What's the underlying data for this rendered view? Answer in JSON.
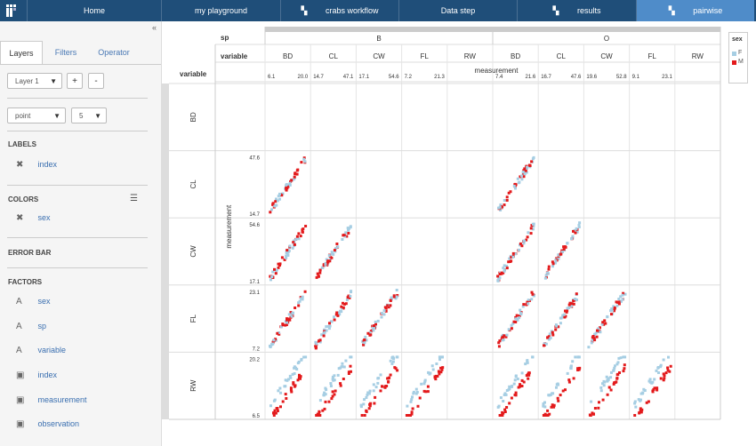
{
  "nav": {
    "tabs": [
      {
        "label": "Home",
        "icon": "",
        "active": false
      },
      {
        "label": "my playground",
        "icon": "",
        "active": false
      },
      {
        "label": "crabs workflow",
        "icon": "▚",
        "active": false
      },
      {
        "label": "Data step",
        "icon": "",
        "active": false
      },
      {
        "label": "results",
        "icon": "▚",
        "active": false
      },
      {
        "label": "pairwise",
        "icon": "▚",
        "active": true
      }
    ]
  },
  "sidebar": {
    "collapse": "«",
    "tabs": [
      "Layers",
      "Filters",
      "Operator"
    ],
    "layer_select": "Layer 1",
    "add": "+",
    "remove": "-",
    "geom_select": "point",
    "size_select": "5",
    "labels_title": "LABELS",
    "labels": [
      "index"
    ],
    "colors_title": "COLORS",
    "colors": [
      "sex"
    ],
    "errorbar_title": "ERROR BAR",
    "factors_title": "FACTORS",
    "factors": [
      {
        "label": "sex",
        "icon": "A"
      },
      {
        "label": "sp",
        "icon": "A"
      },
      {
        "label": "variable",
        "icon": "A"
      },
      {
        "label": "index",
        "icon": "▣"
      },
      {
        "label": "measurement",
        "icon": "▣"
      },
      {
        "label": "observation",
        "icon": "▣"
      }
    ]
  },
  "chart_data": {
    "type": "scatter",
    "col_factor_1": "sp",
    "col_factor_2": "variable",
    "row_factor": "variable",
    "x_title": "measurement",
    "y_title": "measurement",
    "species": [
      "B",
      "O"
    ],
    "variables": [
      "BD",
      "CL",
      "CW",
      "FL",
      "RW"
    ],
    "x_ticks": {
      "BD": [
        "6.1",
        "20.0"
      ],
      "CL": [
        "14.7",
        "47.1"
      ],
      "CW": [
        "17.1",
        "54.6"
      ],
      "FL": [
        "7.2",
        "21.3"
      ],
      "RW": [],
      "BD_O": [
        "7.4",
        "21.6"
      ],
      "CL_O": [
        "16.7",
        "47.6"
      ],
      "CW_O": [
        "19.6",
        "52.8"
      ],
      "FL_O": [
        "9.1",
        "23.1"
      ]
    },
    "y_ticks": {
      "CL": [
        "47.6",
        "14.7"
      ],
      "CW": [
        "54.6",
        "17.1"
      ],
      "FL": [
        "23.1",
        "7.2"
      ],
      "RW": [
        "20.2",
        "6.5"
      ]
    },
    "legend": {
      "title": "sex",
      "entries": [
        {
          "name": "F",
          "color": "#a6cee3"
        },
        {
          "name": "M",
          "color": "#e31a1c"
        }
      ]
    },
    "colors": {
      "F": "#a6cee3",
      "M": "#e31a1c"
    },
    "panels": [
      {
        "row": "CL",
        "col": "BD",
        "sp": "B"
      },
      {
        "row": "CW",
        "col": "BD",
        "sp": "B"
      },
      {
        "row": "CW",
        "col": "CL",
        "sp": "B"
      },
      {
        "row": "FL",
        "col": "BD",
        "sp": "B"
      },
      {
        "row": "FL",
        "col": "CL",
        "sp": "B"
      },
      {
        "row": "FL",
        "col": "CW",
        "sp": "B"
      },
      {
        "row": "RW",
        "col": "BD",
        "sp": "B"
      },
      {
        "row": "RW",
        "col": "CL",
        "sp": "B"
      },
      {
        "row": "RW",
        "col": "CW",
        "sp": "B"
      },
      {
        "row": "RW",
        "col": "FL",
        "sp": "B"
      },
      {
        "row": "CL",
        "col": "BD",
        "sp": "O"
      },
      {
        "row": "CW",
        "col": "BD",
        "sp": "O"
      },
      {
        "row": "CW",
        "col": "CL",
        "sp": "O"
      },
      {
        "row": "FL",
        "col": "BD",
        "sp": "O"
      },
      {
        "row": "FL",
        "col": "CL",
        "sp": "O"
      },
      {
        "row": "FL",
        "col": "CW",
        "sp": "O"
      },
      {
        "row": "RW",
        "col": "BD",
        "sp": "O"
      },
      {
        "row": "RW",
        "col": "CL",
        "sp": "O"
      },
      {
        "row": "RW",
        "col": "CW",
        "sp": "O"
      },
      {
        "row": "RW",
        "col": "FL",
        "sp": "O"
      }
    ]
  }
}
